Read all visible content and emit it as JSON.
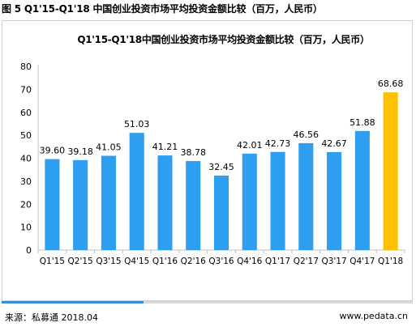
{
  "figure_caption": "图 5 Q1'15-Q1'18 中国创业投资市场平均投资金额比较（百万，人民币）",
  "source": "来源：私募通 2018.04",
  "website": "www.pedata.cn",
  "colors": {
    "bar_default": "#2e9ff0",
    "bar_highlight": "#ffc000",
    "gridline": "#d9d9d9",
    "axis": "#bfbfbf",
    "accent_line": "#3a8fd9"
  },
  "chart_data": {
    "type": "bar",
    "title": "Q1'15-Q1'18中国创业投资市场平均投资金额比较（百万，人民币）",
    "categories": [
      "Q1'15",
      "Q2'15",
      "Q3'15",
      "Q4'15",
      "Q1'16",
      "Q2'16",
      "Q3'16",
      "Q4'16",
      "Q1'17",
      "Q2'17",
      "Q3'17",
      "Q4'17",
      "Q1'18"
    ],
    "values": [
      39.6,
      39.18,
      41.05,
      51.03,
      41.21,
      38.78,
      32.45,
      42.01,
      42.73,
      46.56,
      42.67,
      51.88,
      68.68
    ],
    "value_labels": [
      "39.60",
      "39.18",
      "41.05",
      "51.03",
      "41.21",
      "38.78",
      "32.45",
      "42.01",
      "42.73",
      "46.56",
      "42.67",
      "51.88",
      "68.68"
    ],
    "highlight_index": 12,
    "ylim": [
      0,
      80
    ],
    "yticks": [
      0,
      10,
      20,
      30,
      40,
      50,
      60,
      70,
      80
    ],
    "xlabel": "",
    "ylabel": "",
    "grid": false,
    "legend": "none"
  }
}
